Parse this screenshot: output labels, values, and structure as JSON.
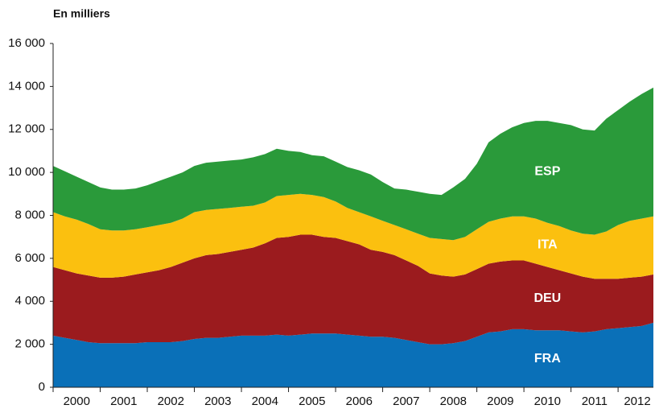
{
  "chart_data": {
    "type": "stacked-area",
    "title": "En milliers",
    "categories": [
      "2000",
      null,
      null,
      null,
      "2001",
      null,
      null,
      null,
      "2002",
      null,
      null,
      null,
      "2003",
      null,
      null,
      null,
      "2004",
      null,
      null,
      null,
      "2005",
      null,
      null,
      null,
      "2006",
      null,
      null,
      null,
      "2007",
      null,
      null,
      null,
      "2008",
      null,
      null,
      null,
      "2009",
      null,
      null,
      null,
      "2010",
      null,
      null,
      null,
      "2011",
      null,
      null,
      null,
      "2012",
      null,
      null,
      null
    ],
    "series": [
      {
        "name": "FRA",
        "color": "#0a70b8",
        "values": [
          2400,
          2300,
          2200,
          2100,
          2050,
          2050,
          2050,
          2050,
          2100,
          2100,
          2100,
          2150,
          2250,
          2300,
          2300,
          2350,
          2400,
          2400,
          2400,
          2450,
          2400,
          2450,
          2500,
          2500,
          2500,
          2450,
          2400,
          2350,
          2350,
          2300,
          2200,
          2100,
          2000,
          2000,
          2050,
          2150,
          2350,
          2550,
          2600,
          2700,
          2700,
          2650,
          2650,
          2650,
          2600,
          2550,
          2600,
          2700,
          2750,
          2800,
          2850,
          3000
        ]
      },
      {
        "name": "DEU",
        "color": "#9b1b1e",
        "values": [
          3200,
          3150,
          3100,
          3100,
          3050,
          3050,
          3100,
          3200,
          3250,
          3350,
          3500,
          3650,
          3750,
          3850,
          3900,
          3950,
          4000,
          4100,
          4300,
          4500,
          4600,
          4650,
          4600,
          4500,
          4450,
          4350,
          4250,
          4050,
          3950,
          3850,
          3700,
          3550,
          3300,
          3200,
          3100,
          3100,
          3150,
          3200,
          3250,
          3200,
          3200,
          3100,
          2950,
          2800,
          2700,
          2600,
          2450,
          2350,
          2300,
          2300,
          2300,
          2250
        ]
      },
      {
        "name": "ITA",
        "color": "#fbc00f",
        "values": [
          2550,
          2500,
          2500,
          2400,
          2250,
          2200,
          2150,
          2100,
          2100,
          2100,
          2050,
          2050,
          2150,
          2100,
          2100,
          2050,
          2000,
          1950,
          1900,
          1950,
          1950,
          1900,
          1850,
          1850,
          1700,
          1550,
          1500,
          1550,
          1450,
          1400,
          1450,
          1500,
          1650,
          1700,
          1700,
          1750,
          1850,
          1950,
          2000,
          2050,
          2050,
          2100,
          2050,
          2050,
          2000,
          2000,
          2050,
          2200,
          2500,
          2650,
          2700,
          2700
        ]
      },
      {
        "name": "ESP",
        "color": "#2a9a3a",
        "values": [
          2150,
          2100,
          2000,
          1950,
          1950,
          1900,
          1900,
          1900,
          1950,
          2050,
          2150,
          2150,
          2150,
          2200,
          2200,
          2200,
          2200,
          2250,
          2250,
          2200,
          2050,
          1950,
          1850,
          1900,
          1850,
          1900,
          1950,
          1950,
          1800,
          1700,
          1850,
          1950,
          2050,
          2050,
          2450,
          2700,
          3050,
          3700,
          3950,
          4150,
          4350,
          4550,
          4750,
          4800,
          4900,
          4850,
          4850,
          5250,
          5350,
          5550,
          5800,
          6000
        ]
      }
    ],
    "ylim": [
      0,
      16000
    ],
    "yticks": [
      0,
      {
        "value": 2000,
        "label": "2 000"
      },
      {
        "value": 4000,
        "label": "4 000"
      },
      {
        "value": 6000,
        "label": "6 000"
      },
      {
        "value": 8000,
        "label": "8 000"
      },
      {
        "value": 10000,
        "label": "10 000"
      },
      {
        "value": 12000,
        "label": "12 000"
      },
      {
        "value": 14000,
        "label": "14 000"
      },
      {
        "value": 16000,
        "label": "16 000"
      }
    ],
    "grid": false
  }
}
